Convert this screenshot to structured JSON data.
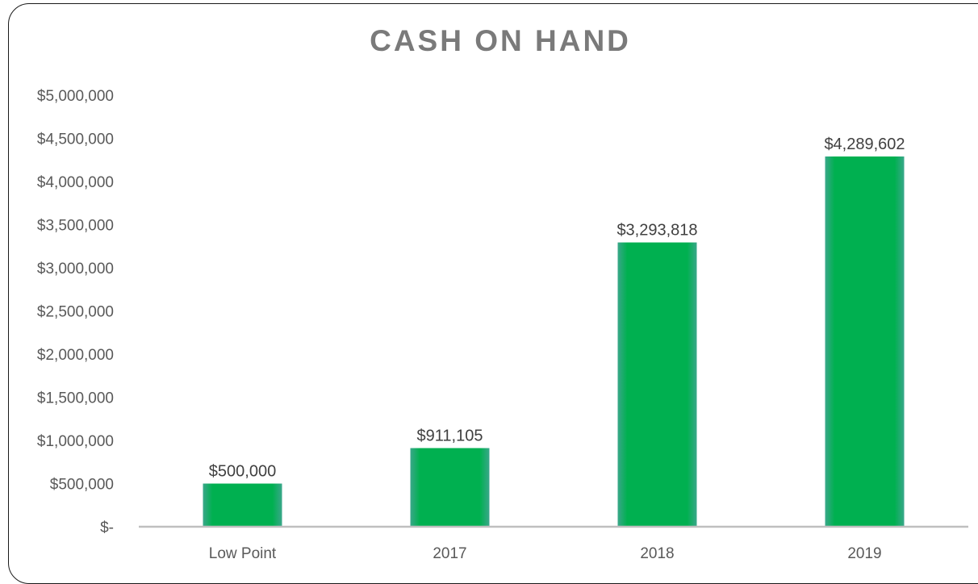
{
  "chart_data": {
    "type": "bar",
    "title": "CASH ON HAND",
    "categories": [
      "Low Point",
      "2017",
      "2018",
      "2019"
    ],
    "values": [
      500000,
      911105,
      3293818,
      4289602
    ],
    "data_labels": [
      "$500,000",
      "$911,105",
      "$3,293,818",
      "$4,289,602"
    ],
    "ylim": [
      0,
      5000000
    ],
    "yticks": [
      0,
      500000,
      1000000,
      1500000,
      2000000,
      2500000,
      3000000,
      3500000,
      4000000,
      4500000,
      5000000
    ],
    "ytick_labels": [
      "$-",
      "$500,000",
      "$1,000,000",
      "$1,500,000",
      "$2,000,000",
      "$2,500,000",
      "$3,000,000",
      "$3,500,000",
      "$4,000,000",
      "$4,500,000",
      "$5,000,000"
    ],
    "xlabel": "",
    "ylabel": "",
    "grid": false,
    "legend": "none",
    "colors": {
      "bar": "#00b050",
      "bar_edge": "#3aa78a",
      "axis": "#bfbfbf",
      "title": "#7a7a7a"
    }
  }
}
